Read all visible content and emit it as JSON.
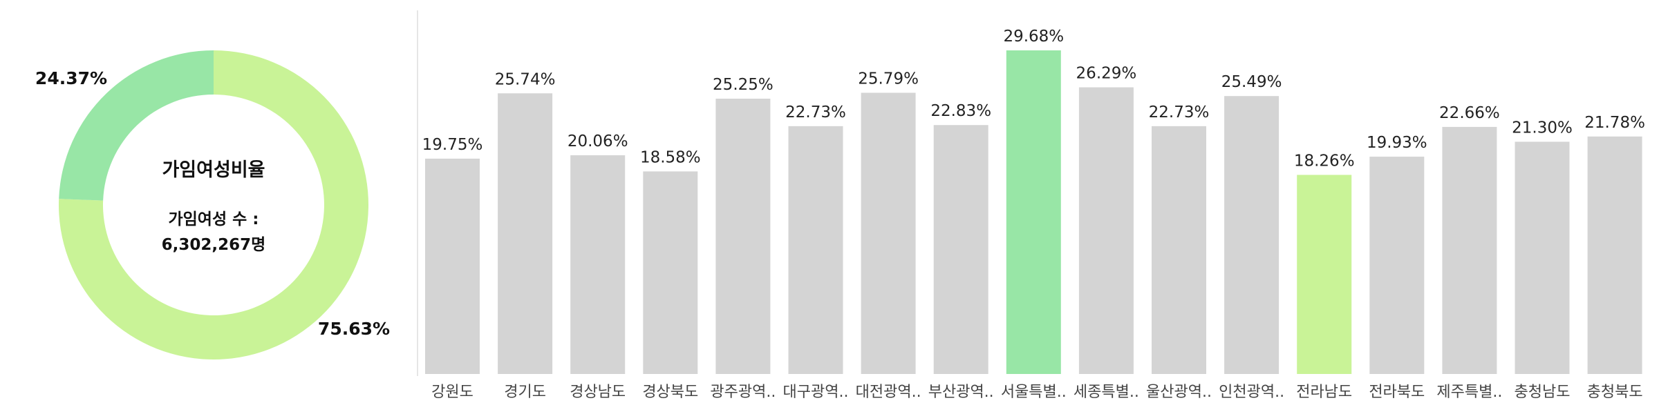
{
  "colors": {
    "donut_major": "#c9f397",
    "donut_minor": "#98e6a6",
    "bar_default": "#d4d4d4",
    "bar_highlight_max": "#98e6a6",
    "bar_highlight_min": "#c9f397",
    "axis_line": "#e6e6e6"
  },
  "chart_data": [
    {
      "type": "pie",
      "subtype": "donut",
      "title": "가임여성비율",
      "subtitle_line1": "가임여성 수 :",
      "subtitle_line2": "6,302,267명",
      "slices": [
        {
          "value": 75.63,
          "label": "75.63%"
        },
        {
          "value": 24.37,
          "label": "24.37%"
        }
      ]
    },
    {
      "type": "bar",
      "categories": [
        "강원도",
        "경기도",
        "경상남도",
        "경상북도",
        "광주광역..",
        "대구광역..",
        "대전광역..",
        "부산광역..",
        "서울특별..",
        "세종특별..",
        "울산광역..",
        "인천광역..",
        "전라남도",
        "전라북도",
        "제주특별..",
        "충청남도",
        "충청북도"
      ],
      "values": [
        19.75,
        25.74,
        20.06,
        18.58,
        25.25,
        22.73,
        25.79,
        22.83,
        29.68,
        26.29,
        22.73,
        25.49,
        18.26,
        19.93,
        22.66,
        21.3,
        21.78
      ],
      "value_labels": [
        "19.75%",
        "25.74%",
        "20.06%",
        "18.58%",
        "25.25%",
        "22.73%",
        "25.79%",
        "22.83%",
        "29.68%",
        "26.29%",
        "22.73%",
        "25.49%",
        "18.26%",
        "19.93%",
        "22.66%",
        "21.30%",
        "21.78%"
      ],
      "highlight": {
        "max_index": 8,
        "min_index": 12
      },
      "ylim": [
        0,
        29.68
      ],
      "grid": false,
      "xlabel": "",
      "ylabel": ""
    }
  ]
}
